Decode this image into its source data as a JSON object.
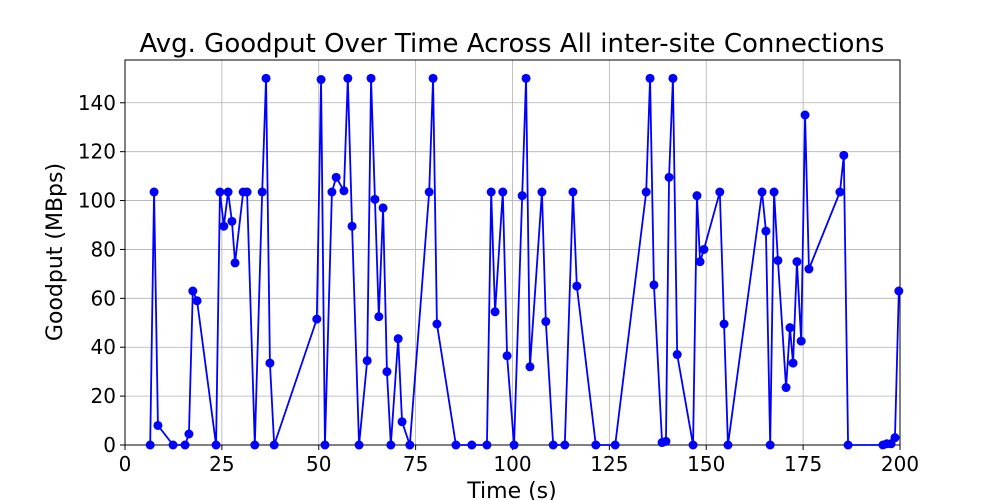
{
  "chart_data": {
    "type": "line",
    "title": "Avg. Goodput Over Time Across All inter-site Connections",
    "xlabel": "Time (s)",
    "ylabel": "Goodput (MBps)",
    "xlim": [
      0,
      200
    ],
    "ylim": [
      0,
      157.5
    ],
    "xticks": [
      0,
      25,
      50,
      75,
      100,
      125,
      150,
      175,
      200
    ],
    "yticks": [
      0,
      20,
      40,
      60,
      80,
      100,
      120,
      140
    ],
    "grid": true,
    "series": [
      {
        "color": "#0000ff",
        "x": [
          6.5,
          7.5,
          8.5,
          12.4,
          15.5,
          16.5,
          17.5,
          18.6,
          23.5,
          24.5,
          25.5,
          26.6,
          27.6,
          28.4,
          30.5,
          31.5,
          33.5,
          35.4,
          36.4,
          37.4,
          38.5,
          49.5,
          50.6,
          51.6,
          53.4,
          54.5,
          56.5,
          57.5,
          58.6,
          60.4,
          62.5,
          63.5,
          64.5,
          65.5,
          66.6,
          67.6,
          68.6,
          70.5,
          71.5,
          73.5,
          78.5,
          79.5,
          80.5,
          85.4,
          89.5,
          93.4,
          94.5,
          95.5,
          97.5,
          98.6,
          100.4,
          102.5,
          103.5,
          104.5,
          107.6,
          108.6,
          110.5,
          113.5,
          115.6,
          116.6,
          121.5,
          126.5,
          134.5,
          135.5,
          136.5,
          138.6,
          139.6,
          140.4,
          141.4,
          142.5,
          146.6,
          147.6,
          148.4,
          149.4,
          153.5,
          154.6,
          155.6,
          164.4,
          165.4,
          166.5,
          167.5,
          168.5,
          170.6,
          171.6,
          172.4,
          173.4,
          174.5,
          175.5,
          176.5,
          184.5,
          185.5,
          186.6,
          195.6,
          196.6,
          197.7,
          198.7,
          199.7
        ],
        "values": [
          0,
          103.5,
          8,
          0,
          0,
          4.5,
          63,
          59,
          0,
          103.5,
          89.5,
          103.5,
          91.5,
          74.5,
          103.5,
          103.5,
          0,
          103.5,
          150,
          33.5,
          0,
          51.5,
          149.5,
          0,
          103.5,
          109.5,
          104,
          150,
          89.5,
          0,
          34.5,
          150,
          100.5,
          52.5,
          97,
          30,
          0,
          43.5,
          9.5,
          0,
          103.5,
          150,
          49.5,
          0,
          0,
          0,
          103.5,
          54.5,
          103.5,
          36.5,
          0,
          102,
          150,
          32,
          103.5,
          50.5,
          0,
          0,
          103.5,
          65,
          0,
          0,
          103.5,
          150,
          65.5,
          1,
          1.5,
          109.5,
          150,
          37,
          0,
          102,
          75,
          80,
          103.5,
          49.5,
          0,
          103.5,
          87.5,
          0,
          103.5,
          75.5,
          23.5,
          48,
          33.5,
          75,
          42.5,
          135,
          72,
          103.5,
          118.5,
          0,
          0,
          0.5,
          0.5,
          3,
          63
        ]
      }
    ]
  }
}
